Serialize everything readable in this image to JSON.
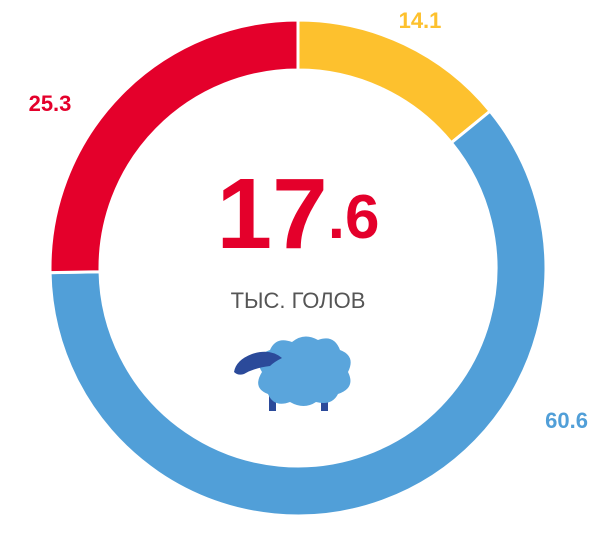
{
  "chart_data": {
    "type": "donut",
    "center_value": "17.6",
    "center_label": "ТЫС. ГОЛОВ",
    "series": [
      {
        "name": null,
        "color": "#fdc12e",
        "values": [
          14.1
        ]
      },
      {
        "name": null,
        "color": "#519fd8",
        "values": [
          60.6
        ]
      },
      {
        "name": null,
        "color": "#e4002b",
        "values": [
          25.3
        ]
      }
    ],
    "values": [
      14.1,
      60.6,
      25.3
    ],
    "colors": [
      "#fdc12e",
      "#519fd8",
      "#e4002b"
    ]
  }
}
